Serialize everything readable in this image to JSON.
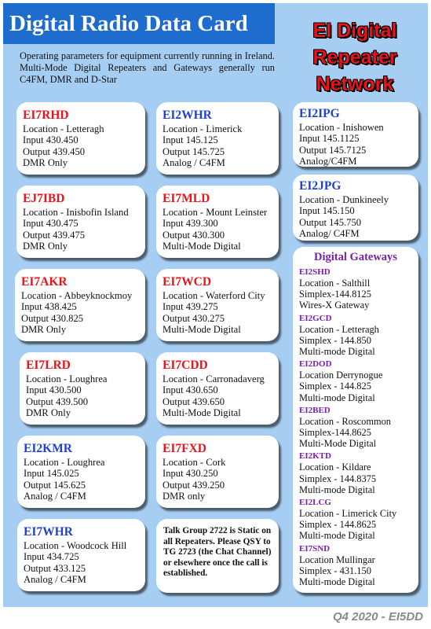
{
  "title": "Digital Radio Data Card",
  "network_lines": [
    "EI Digital",
    "Repeater",
    "Network"
  ],
  "intro": "Operating parameters for equipment currently running in Ireland. Multi-Mode Digital Repeaters and Gateways generally run C4FM, DMR and D-Star",
  "colors": {
    "band": "#1f6ccf",
    "background": "#a6cdf2",
    "red_callsign": "#e8141b",
    "blue_callsign": "#1f3fd8",
    "gateway": "#7a1fa8"
  },
  "repeaters": [
    {
      "callsign": "EI7RHD",
      "color": "red",
      "lines": [
        "Location - Letteragh",
        "Input   430.450",
        "Output 439.450",
        "DMR Only"
      ]
    },
    {
      "callsign": "EJ7IBD",
      "color": "red",
      "lines": [
        "Location - Inisbofin Island",
        "Input   430.475",
        "Output 439.475",
        "DMR Only"
      ]
    },
    {
      "callsign": "EI7AKR",
      "color": "red",
      "lines": [
        "Location - Abbeyknockmoy",
        "Input   438.425",
        "Output 430.825",
        "DMR Only"
      ]
    },
    {
      "callsign": "EI7LRD",
      "color": "red",
      "lines": [
        "Location - Loughrea",
        "Input   430.500",
        "Output 439.500",
        "DMR Only"
      ]
    },
    {
      "callsign": "EI2KMR",
      "color": "blue",
      "lines": [
        "Location - Loughrea",
        "Input  145.025",
        "Output 145.625",
        "Analog / C4FM"
      ]
    },
    {
      "callsign": "EI7WHR",
      "color": "blue",
      "lines": [
        "Location - Woodcock Hill",
        "Input  434.725",
        "Output 433.125",
        "Analog / C4FM"
      ]
    },
    {
      "callsign": "EI2WHR",
      "color": "blue",
      "lines": [
        "Location - Limerick",
        "Input   145.125",
        "Output 145.725",
        "Analog / C4FM"
      ]
    },
    {
      "callsign": "EI7MLD",
      "color": "red",
      "lines": [
        "Location - Mount Leinster",
        "Input   439.300",
        "Output 430.300",
        "Multi-Mode Digital"
      ]
    },
    {
      "callsign": "EI7WCD",
      "color": "red",
      "lines": [
        "Location - Waterford City",
        "Input   439.275",
        "Output 430.275",
        "Multi-Mode Digital"
      ]
    },
    {
      "callsign": "EI7CDD",
      "color": "red",
      "lines": [
        "Location - Carronadaverg",
        "Input   430.650",
        "Output 439.650",
        "Multi-Mode Digital"
      ]
    },
    {
      "callsign": "EI7FXD",
      "color": "red",
      "lines": [
        "Location - Cork",
        "Input   430.250",
        "Output 439.250",
        "DMR only"
      ]
    },
    {
      "callsign": "EI2IPG",
      "color": "blue",
      "lines": [
        "Location - Inishowen",
        "Input  145.1125",
        "Output 145.7125",
        "Analog/C4FM"
      ]
    },
    {
      "callsign": "EI2JPG",
      "color": "blue",
      "lines": [
        "Location - Dunkineely",
        "Input   145.150",
        "Output 145.750",
        "Analog/ C4FM"
      ]
    }
  ],
  "talkgroup": "Talk Group 2722 is Static on all Repeaters. Please QSY to TG 2723 (the Chat Channel) or elsewhere once the call is established.",
  "gateways_title": "Digital Gateways",
  "gateways": [
    {
      "callsign": "EI2SHD",
      "lines": [
        "Location - Salthill",
        "Simplex-144.8125",
        "Wires-X Gateway"
      ]
    },
    {
      "callsign": "EI2GCD",
      "lines": [
        "Location - Letteragh",
        "Simplex - 144.850",
        "Multi-mode Digital"
      ]
    },
    {
      "callsign": "EI2DOD",
      "lines": [
        "Location Derrynogue",
        "Simplex - 144.825",
        "Multi-mode Digital"
      ]
    },
    {
      "callsign": "EI2BED",
      "lines": [
        "Location - Roscommon",
        "Simplex-144.8625",
        "Multi-Mode Digital"
      ]
    },
    {
      "callsign": "EI2KTD",
      "lines": [
        "Location - Kildare",
        "Simplex - 144.8375",
        "Multi-mode Digital"
      ]
    },
    {
      "callsign": "EI2LCG",
      "lines": [
        "Location - Limerick City",
        "Simplex - 144.8625",
        "Multi-mode Digital"
      ]
    },
    {
      "callsign": "EI7SND",
      "lines": [
        "Location Mullingar",
        "Simplex - 431.150",
        "Multi-mode Digital"
      ]
    }
  ],
  "footer": "Q4 2020 - EI5DD"
}
